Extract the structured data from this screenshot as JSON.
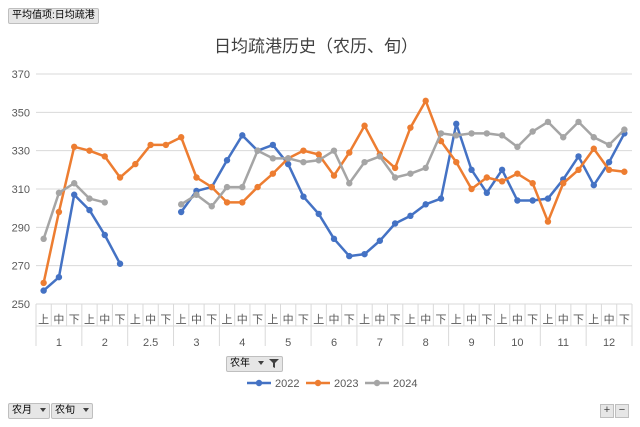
{
  "filter_button": {
    "label": "平均值项:日均疏港"
  },
  "legend_field": {
    "label": "农年"
  },
  "axis_fields": [
    {
      "label": "农月"
    },
    {
      "label": "农旬"
    }
  ],
  "zoom": {
    "plus": "+",
    "minus": "−"
  },
  "colors": {
    "2022": "#4472c4",
    "2023": "#ed7d31",
    "2024": "#a5a5a5",
    "grid": "#d9d9d9"
  },
  "chart_data": {
    "type": "line",
    "title": "日均疏港历史（农历、旬）",
    "ylim": [
      250,
      370
    ],
    "yticks": [
      250,
      270,
      290,
      310,
      330,
      350,
      370
    ],
    "grid": true,
    "legend_position": "bottom",
    "xaxis": {
      "months": [
        {
          "label": "1",
          "ten_days": [
            "上",
            "中",
            "下"
          ]
        },
        {
          "label": "2",
          "ten_days": [
            "上",
            "中",
            "下"
          ]
        },
        {
          "label": "2.5",
          "ten_days": [
            "上",
            "中",
            "下"
          ]
        },
        {
          "label": "3",
          "ten_days": [
            "上",
            "中",
            "下"
          ]
        },
        {
          "label": "4",
          "ten_days": [
            "上",
            "中",
            "下"
          ]
        },
        {
          "label": "5",
          "ten_days": [
            "上",
            "中",
            "下"
          ]
        },
        {
          "label": "6",
          "ten_days": [
            "上",
            "中",
            "下"
          ]
        },
        {
          "label": "7",
          "ten_days": [
            "上",
            "中",
            "下"
          ]
        },
        {
          "label": "8",
          "ten_days": [
            "上",
            "中",
            "下"
          ]
        },
        {
          "label": "9",
          "ten_days": [
            "上",
            "中",
            "下"
          ]
        },
        {
          "label": "10",
          "ten_days": [
            "上",
            "中",
            "下"
          ]
        },
        {
          "label": "11",
          "ten_days": [
            "上",
            "中",
            "下"
          ]
        },
        {
          "label": "12",
          "ten_days": [
            "上",
            "中",
            "下"
          ]
        }
      ]
    },
    "series": [
      {
        "name": "2022",
        "values": [
          257,
          264,
          307,
          299,
          286,
          271,
          null,
          null,
          null,
          298,
          309,
          311,
          325,
          338,
          330,
          333,
          323,
          306,
          297,
          284,
          275,
          276,
          283,
          292,
          296,
          302,
          305,
          344,
          320,
          308,
          320,
          304,
          304,
          305,
          315,
          327,
          312,
          324,
          339
        ]
      },
      {
        "name": "2023",
        "values": [
          261,
          298,
          332,
          330,
          327,
          316,
          323,
          333,
          333,
          337,
          316,
          311,
          303,
          303,
          311,
          318,
          326,
          330,
          328,
          317,
          329,
          343,
          328,
          321,
          342,
          356,
          335,
          324,
          310,
          316,
          314,
          318,
          313,
          293,
          313,
          320,
          331,
          320,
          319
        ]
      },
      {
        "name": "2024",
        "values": [
          284,
          308,
          313,
          305,
          303,
          null,
          null,
          null,
          null,
          302,
          307,
          301,
          311,
          311,
          330,
          326,
          326,
          324,
          325,
          330,
          313,
          324,
          327,
          316,
          318,
          321,
          339,
          338,
          339,
          339,
          338,
          332,
          340,
          345,
          337,
          345,
          337,
          333,
          341
        ]
      }
    ]
  }
}
